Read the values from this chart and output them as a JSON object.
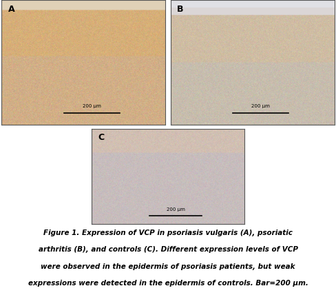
{
  "figure_width": 4.88,
  "figure_height": 4.44,
  "dpi": 100,
  "background_color": "#ffffff",
  "panel_labels": [
    "A",
    "B",
    "C"
  ],
  "label_fontsize": 9,
  "label_fontweight": "bold",
  "scale_bar_text": "200 μm",
  "caption_lines": [
    "Figure 1. Expression of VCP in psoriasis vulgaris (A), psoriatic",
    "arthritis (B), and controls (C). Different expression levels of VCP",
    "were observed in the epidermis of psoriasis patients, but weak",
    "expressions were detected in the epidermis of controls. Bar=200 μm."
  ],
  "caption_fontsize": 7.5,
  "caption_style": "italic",
  "caption_color": "#000000",
  "border_color": "#555555",
  "border_linewidth": 0.8
}
